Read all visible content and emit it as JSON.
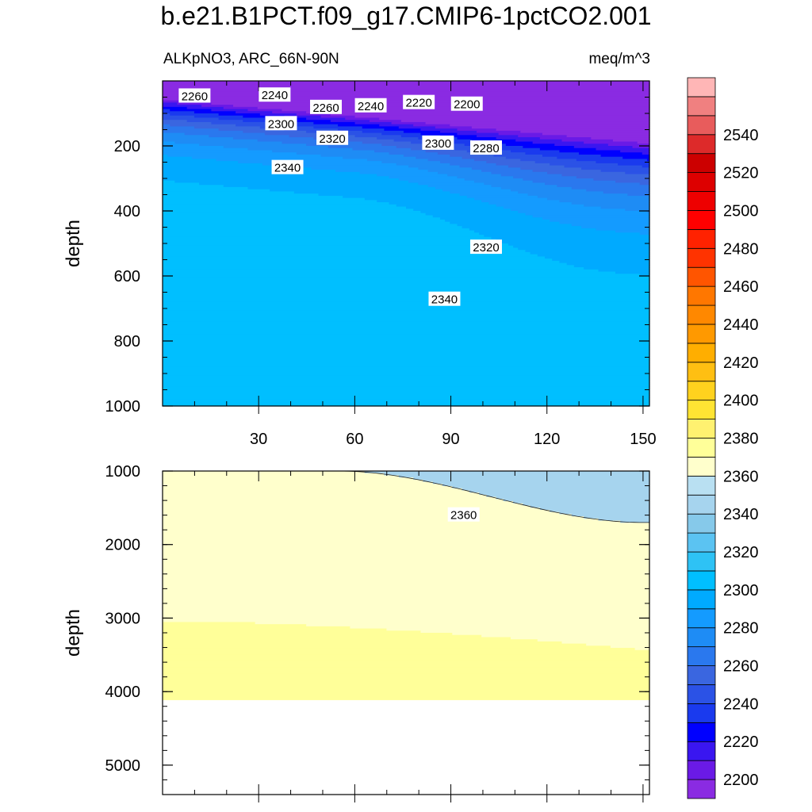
{
  "chart_data": {
    "type": "contour",
    "title": "b.e21.B1PCT.f09_g17.CMIP6-1pctCO2.001",
    "left_subtitle": "ALKpNO3, ARC_66N-90N",
    "right_subtitle": "meq/m^3",
    "x_axis": {
      "range": [
        0,
        152
      ],
      "ticks": [
        30,
        60,
        90,
        120,
        150
      ]
    },
    "colorbar": {
      "min": 2190,
      "step": 10,
      "max": 2560,
      "tick_labels": [
        "2200",
        "2220",
        "2240",
        "2260",
        "2280",
        "2300",
        "2320",
        "2340",
        "2360",
        "2380",
        "2400",
        "2420",
        "2440",
        "2460",
        "2480",
        "2500",
        "2520",
        "2540"
      ],
      "colors": [
        "#8a2be2",
        "#6a1ae6",
        "#3a16f0",
        "#0000ff",
        "#1a3aee",
        "#2b52e6",
        "#3a66e0",
        "#2a78ee",
        "#1e8cf5",
        "#149bff",
        "#00aaff",
        "#00bfff",
        "#2ec2f5",
        "#5bc3f2",
        "#86c9ea",
        "#a6d4ee",
        "#b9e0f2",
        "#ffffcc",
        "#ffff99",
        "#fff170",
        "#ffe433",
        "#ffd21e",
        "#ffbf12",
        "#ffae00",
        "#ff9900",
        "#ff8800",
        "#ff7700",
        "#ff5500",
        "#ff3300",
        "#ff2200",
        "#ff0000",
        "#ee0000",
        "#dd0000",
        "#cc0000",
        "#dd2a2a",
        "#e85c5c",
        "#f08080",
        "#ffb6b6"
      ]
    },
    "panels": [
      {
        "ylabel": "depth",
        "ylim": [
          0,
          1000
        ],
        "y_ticks": [
          200,
          400,
          600,
          800,
          1000
        ],
        "contour_labels": [
          {
            "text": "2260",
            "x": 10,
            "y": 45
          },
          {
            "text": "2240",
            "x": 35,
            "y": 42
          },
          {
            "text": "2260",
            "x": 51,
            "y": 80
          },
          {
            "text": "2240",
            "x": 65,
            "y": 75
          },
          {
            "text": "2220",
            "x": 80,
            "y": 65
          },
          {
            "text": "2200",
            "x": 95,
            "y": 70
          },
          {
            "text": "2300",
            "x": 37,
            "y": 130
          },
          {
            "text": "2320",
            "x": 53,
            "y": 175
          },
          {
            "text": "2300",
            "x": 86,
            "y": 190
          },
          {
            "text": "2280",
            "x": 101,
            "y": 205
          },
          {
            "text": "2340",
            "x": 39,
            "y": 265
          },
          {
            "text": "2320",
            "x": 101,
            "y": 510
          },
          {
            "text": "2340",
            "x": 88,
            "y": 670
          }
        ]
      },
      {
        "ylabel": "depth",
        "ylim": [
          1000,
          5400
        ],
        "y_ticks": [
          1000,
          2000,
          3000,
          4000,
          5000
        ],
        "contour_labels": [
          {
            "text": "2360",
            "x": 94,
            "y": 1590
          }
        ]
      }
    ]
  }
}
